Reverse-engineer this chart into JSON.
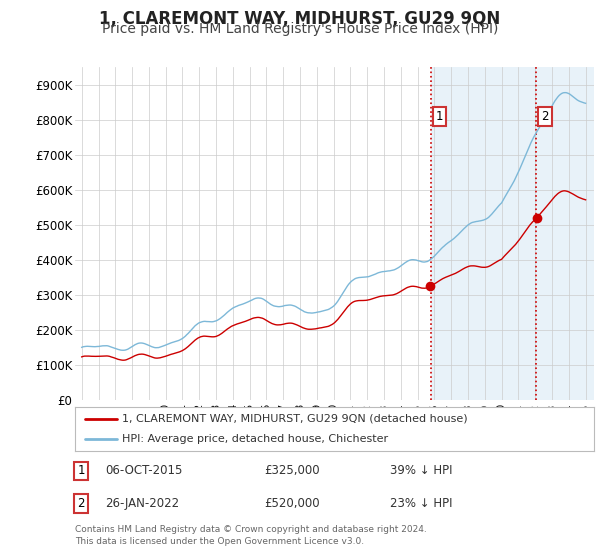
{
  "title": "1, CLAREMONT WAY, MIDHURST, GU29 9QN",
  "subtitle": "Price paid vs. HM Land Registry's House Price Index (HPI)",
  "title_fontsize": 12,
  "subtitle_fontsize": 10,
  "ylim": [
    0,
    950000
  ],
  "yticks": [
    0,
    100000,
    200000,
    300000,
    400000,
    500000,
    600000,
    700000,
    800000,
    900000
  ],
  "ytick_labels": [
    "£0",
    "£100K",
    "£200K",
    "£300K",
    "£400K",
    "£500K",
    "£600K",
    "£700K",
    "£800K",
    "£900K"
  ],
  "hpi_color": "#7db8d8",
  "price_color": "#cc0000",
  "sale1_date": 2015.77,
  "sale1_price": 325000,
  "sale2_date": 2022.07,
  "sale2_price": 520000,
  "vline_color": "#cc0000",
  "shade_color": "#daeaf5",
  "legend_items": [
    {
      "label": "1, CLAREMONT WAY, MIDHURST, GU29 9QN (detached house)",
      "color": "#cc0000"
    },
    {
      "label": "HPI: Average price, detached house, Chichester",
      "color": "#7db8d8"
    }
  ],
  "annotation1": [
    "1",
    "06-OCT-2015",
    "£325,000",
    "39% ↓ HPI"
  ],
  "annotation2": [
    "2",
    "26-JAN-2022",
    "£520,000",
    "23% ↓ HPI"
  ],
  "footnote": "Contains HM Land Registry data © Crown copyright and database right 2024.\nThis data is licensed under the Open Government Licence v3.0.",
  "bg_color": "#ffffff",
  "grid_color": "#cccccc",
  "box_edge_color": "#cc3333"
}
